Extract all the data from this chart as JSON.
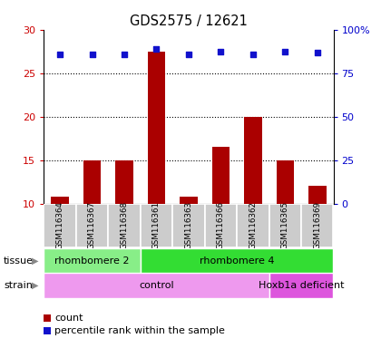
{
  "title": "GDS2575 / 12621",
  "samples": [
    "GSM116364",
    "GSM116367",
    "GSM116368",
    "GSM116361",
    "GSM116363",
    "GSM116366",
    "GSM116362",
    "GSM116365",
    "GSM116369"
  ],
  "counts": [
    10.8,
    15.0,
    15.0,
    27.5,
    10.8,
    16.5,
    20.0,
    15.0,
    12.0
  ],
  "percentile_ranks_left_axis": [
    27.2,
    27.2,
    27.2,
    27.8,
    27.2,
    27.5,
    27.2,
    27.5,
    27.4
  ],
  "ylim_left": [
    10,
    30
  ],
  "ylim_right": [
    0,
    100
  ],
  "yticks_left": [
    10,
    15,
    20,
    25,
    30
  ],
  "yticks_right": [
    0,
    25,
    50,
    75,
    100
  ],
  "bar_color": "#aa0000",
  "dot_color": "#1111cc",
  "grid_yticks": [
    15,
    20,
    25
  ],
  "tissue_groups": [
    {
      "label": "rhombomere 2",
      "start": 0,
      "end": 3,
      "color": "#88ee88"
    },
    {
      "label": "rhombomere 4",
      "start": 3,
      "end": 9,
      "color": "#33dd33"
    }
  ],
  "strain_groups": [
    {
      "label": "control",
      "start": 0,
      "end": 7,
      "color": "#ee99ee"
    },
    {
      "label": "Hoxb1a deficient",
      "start": 7,
      "end": 9,
      "color": "#dd55dd"
    }
  ],
  "tissue_label": "tissue",
  "strain_label": "strain",
  "legend_count_label": "count",
  "legend_pct_label": "percentile rank within the sample",
  "sample_col_color": "#cccccc",
  "left_tick_color": "#cc0000",
  "right_tick_color": "#0000cc"
}
